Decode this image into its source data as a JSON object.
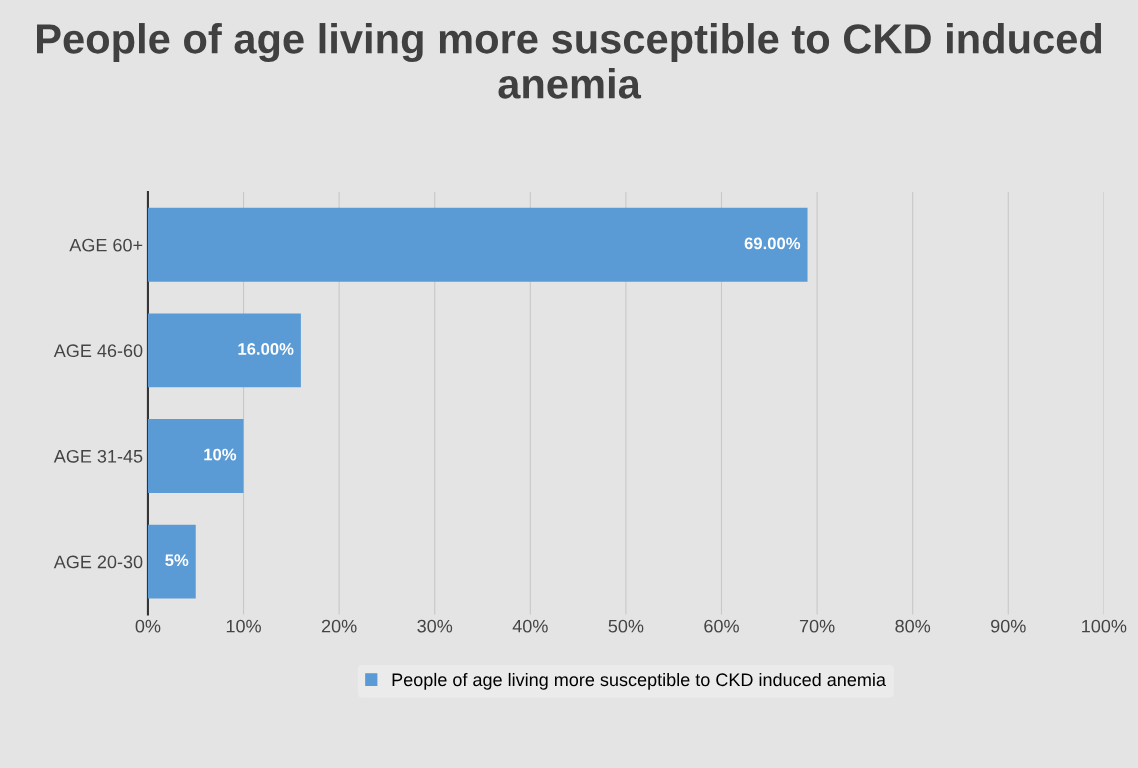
{
  "chart_data": {
    "type": "bar",
    "orientation": "horizontal",
    "title": "People of age living more susceptible to CKD induced anemia",
    "categories": [
      "AGE 60+",
      "AGE 46-60",
      "AGE 31-45",
      "AGE 20-30"
    ],
    "series": [
      {
        "name": "People of age living more susceptible to CKD induced anemia",
        "color": "#5b9bd5",
        "values": [
          69,
          16,
          10,
          5
        ],
        "value_labels": [
          "69.00%",
          "16.00%",
          "10%",
          "5%"
        ]
      }
    ],
    "xlim": [
      0,
      100
    ],
    "xticks": [
      {
        "value": 0,
        "label": "0%"
      },
      {
        "value": 10,
        "label": "10%"
      },
      {
        "value": 20,
        "label": "20%"
      },
      {
        "value": 30,
        "label": "30%"
      },
      {
        "value": 40,
        "label": "40%"
      },
      {
        "value": 50,
        "label": "50%"
      },
      {
        "value": 60,
        "label": "60%"
      },
      {
        "value": 70,
        "label": "70%"
      },
      {
        "value": 80,
        "label": "80%"
      },
      {
        "value": 90,
        "label": "90%"
      },
      {
        "value": 100,
        "label": "100%"
      }
    ],
    "grid": "x",
    "legend": "bottom"
  }
}
